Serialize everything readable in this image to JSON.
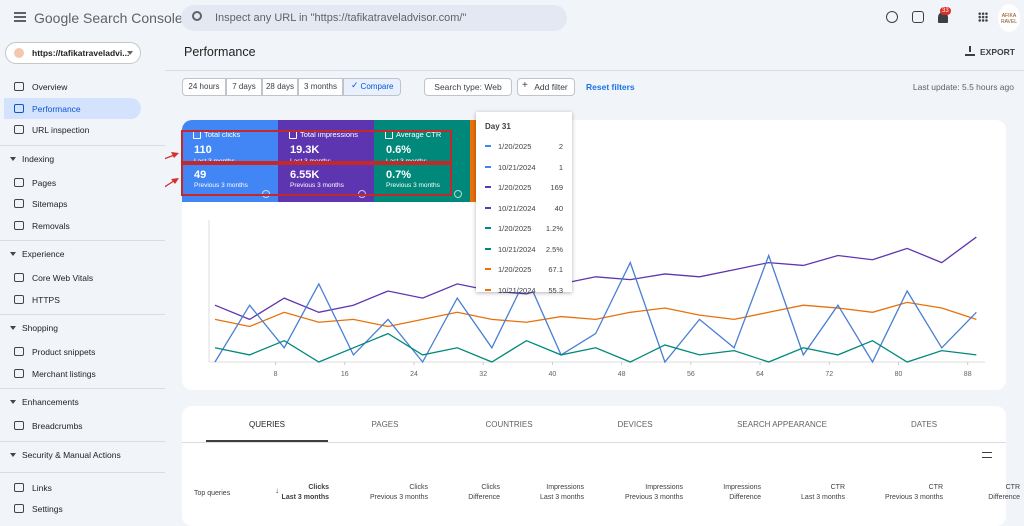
{
  "header": {
    "product": "Google Search Console",
    "search_placeholder": "Inspect any URL in \"https://tafikatraveladvisor.com/\"",
    "notifications": "33",
    "avatar": "AFIKA RAVEL"
  },
  "sidebar": {
    "property": "https://tafikatraveladvi...",
    "groups": [
      {
        "items": [
          "Overview",
          "Performance",
          "URL inspection"
        ]
      },
      {
        "title": "Indexing",
        "items": [
          "Pages",
          "Sitemaps",
          "Removals"
        ]
      },
      {
        "title": "Experience",
        "items": [
          "Core Web Vitals",
          "HTTPS"
        ]
      },
      {
        "title": "Shopping",
        "items": [
          "Product snippets",
          "Merchant listings"
        ]
      },
      {
        "title": "Enhancements",
        "items": [
          "Breadcrumbs"
        ]
      },
      {
        "title": "Security & Manual Actions",
        "items": []
      },
      {
        "items": [
          "Links",
          "Settings"
        ]
      }
    ]
  },
  "page": {
    "title": "Performance",
    "export": "EXPORT",
    "date_filters": [
      "24 hours",
      "7 days",
      "28 days",
      "3 months",
      "Compare"
    ],
    "search_type": "Search type: Web",
    "add_filter": "Add filter",
    "reset_filters": "Reset filters",
    "last_update": "Last update: 5.5 hours ago"
  },
  "metrics": [
    {
      "label": "Total clicks",
      "current": "110",
      "current_period": "Last 3 months",
      "previous": "49",
      "previous_period": "Previous 3 months",
      "color": "#4285f4"
    },
    {
      "label": "Total impressions",
      "current": "19.3K",
      "current_period": "Last 3 months",
      "previous": "6.55K",
      "previous_period": "Previous 3 months",
      "color": "#5e35b1"
    },
    {
      "label": "Average CTR",
      "current": "0.6%",
      "current_period": "Last 3 months",
      "previous": "0.7%",
      "previous_period": "Previous 3 months",
      "color": "#00897b"
    },
    {
      "color": "#e8710a"
    }
  ],
  "tooltip": {
    "title": "Day 31",
    "rows": [
      {
        "date": "1/20/2025",
        "value": "2",
        "color": "#4285f4"
      },
      {
        "date": "10/21/2024",
        "value": "1",
        "color": "#4285f4"
      },
      {
        "date": "1/20/2025",
        "value": "169",
        "color": "#5e35b1"
      },
      {
        "date": "10/21/2024",
        "value": "40",
        "color": "#5e35b1"
      },
      {
        "date": "1/20/2025",
        "value": "1.2%",
        "color": "#00897b"
      },
      {
        "date": "10/21/2024",
        "value": "2.5%",
        "color": "#00897b"
      },
      {
        "date": "1/20/2025",
        "value": "67.1",
        "color": "#e8710a"
      },
      {
        "date": "10/21/2024",
        "value": "55.3",
        "color": "#e8710a"
      }
    ]
  },
  "chart_data": {
    "type": "line",
    "xlim": [
      1,
      90
    ],
    "ylim": [
      0,
      100
    ],
    "xticks": [
      8,
      16,
      24,
      32,
      40,
      48,
      56,
      64,
      72,
      80,
      88
    ],
    "x": [
      1,
      5,
      9,
      13,
      17,
      21,
      25,
      29,
      33,
      37,
      41,
      45,
      49,
      53,
      57,
      61,
      65,
      69,
      73,
      77,
      81,
      85,
      89
    ],
    "series": [
      {
        "color": "#5e35b1",
        "values": [
          40,
          30,
          45,
          35,
          40,
          50,
          45,
          55,
          50,
          48,
          55,
          60,
          58,
          62,
          60,
          65,
          70,
          68,
          75,
          72,
          80,
          70,
          88
        ]
      },
      {
        "color": "#e8710a",
        "values": [
          30,
          25,
          35,
          28,
          30,
          25,
          30,
          35,
          30,
          28,
          32,
          30,
          35,
          38,
          33,
          30,
          35,
          40,
          38,
          35,
          42,
          38,
          30
        ]
      },
      {
        "color": "#4a7fd1",
        "values": [
          0,
          40,
          10,
          55,
          5,
          30,
          0,
          45,
          10,
          60,
          5,
          20,
          70,
          0,
          30,
          10,
          75,
          5,
          40,
          0,
          50,
          10,
          35
        ]
      },
      {
        "color": "#00897b",
        "values": [
          10,
          5,
          15,
          0,
          10,
          20,
          5,
          10,
          0,
          15,
          5,
          10,
          0,
          12,
          5,
          8,
          0,
          10,
          5,
          15,
          0,
          8,
          5
        ]
      }
    ]
  },
  "tabs": [
    "QUERIES",
    "PAGES",
    "COUNTRIES",
    "DEVICES",
    "SEARCH APPEARANCE",
    "DATES"
  ],
  "table": {
    "first_column": "Top queries",
    "columns": [
      {
        "top": "Clicks",
        "bottom": "Last 3 months"
      },
      {
        "top": "Clicks",
        "bottom": "Previous 3 months"
      },
      {
        "top": "Clicks",
        "bottom": "Difference"
      },
      {
        "top": "Impressions",
        "bottom": "Last 3 months"
      },
      {
        "top": "Impressions",
        "bottom": "Previous 3 months"
      },
      {
        "top": "Impressions",
        "bottom": "Difference"
      },
      {
        "top": "CTR",
        "bottom": "Last 3 months"
      },
      {
        "top": "CTR",
        "bottom": "Previous 3 months"
      },
      {
        "top": "CTR",
        "bottom": "Difference"
      }
    ]
  }
}
